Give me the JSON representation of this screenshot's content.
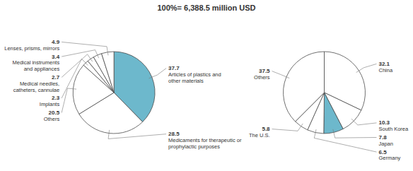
{
  "chart_data": [
    {
      "type": "pie",
      "title": "100%= 6,388.5 million USD",
      "categories": [
        "Articles of plastics and\nother materials",
        "Medicaments for therapeutic or\nprophylactic purposes",
        "Others",
        "Implants",
        "Medical needles,\ncatheters, cannulae",
        "Medical instruments\nand appliances",
        "Lenses, prisms, mirrors"
      ],
      "values": [
        37.7,
        28.5,
        20.5,
        2.3,
        2.7,
        3.4,
        4.9
      ],
      "colors": [
        "#6db8cc",
        "#ffffff",
        "#ffffff",
        "#ffffff",
        "#ffffff",
        "#ffffff",
        "#ffffff"
      ],
      "data_labels": true
    },
    {
      "type": "pie",
      "categories": [
        "China",
        "South Korea",
        "Japan",
        "Germany",
        "The U.S.",
        "Others"
      ],
      "values": [
        32.1,
        10.3,
        7.8,
        6.5,
        5.8,
        37.5
      ],
      "colors": [
        "#ffffff",
        "#ffffff",
        "#6db8cc",
        "#ffffff",
        "#ffffff",
        "#ffffff"
      ],
      "data_labels": true
    }
  ]
}
